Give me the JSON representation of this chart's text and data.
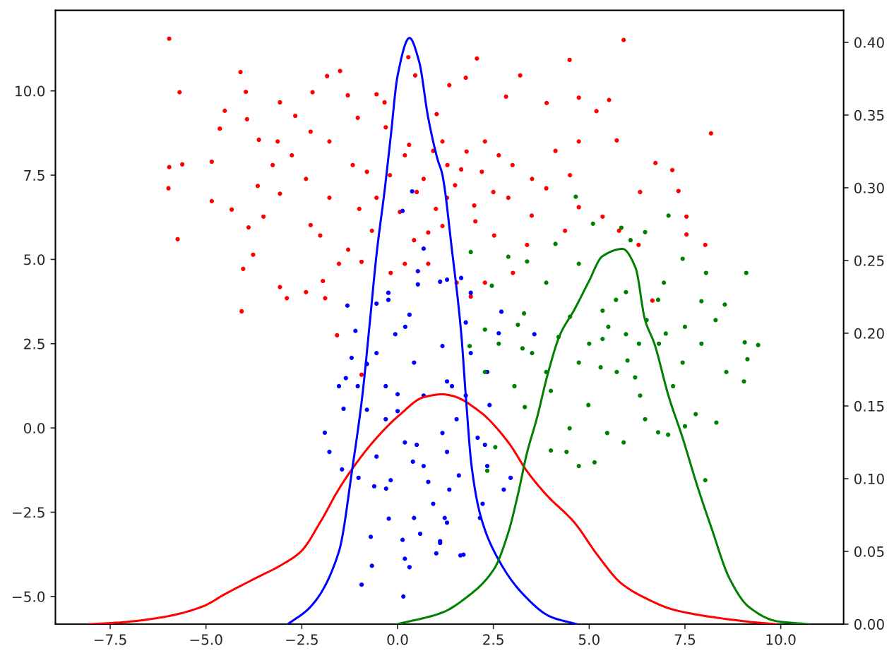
{
  "chart_data": {
    "type": "scatter",
    "xlim": [
      -8.93,
      11.64
    ],
    "ylim": [
      -5.82,
      12.39
    ],
    "y2lim": [
      0,
      0.422
    ],
    "xticks": [
      {
        "value": -7.5,
        "label": "−7.5"
      },
      {
        "value": -5.0,
        "label": "−5.0"
      },
      {
        "value": -2.5,
        "label": "−2.5"
      },
      {
        "value": 0,
        "label": "0.0"
      },
      {
        "value": 2.5,
        "label": "2.5"
      },
      {
        "value": 5.0,
        "label": "5.0"
      },
      {
        "value": 7.5,
        "label": "7.5"
      },
      {
        "value": 10.0,
        "label": "10.0"
      }
    ],
    "yticks": [
      {
        "value": -5.0,
        "label": "−5.0"
      },
      {
        "value": -2.5,
        "label": "−2.5"
      },
      {
        "value": 0,
        "label": "0.0"
      },
      {
        "value": 2.5,
        "label": "2.5"
      },
      {
        "value": 5.0,
        "label": "5.0"
      },
      {
        "value": 7.5,
        "label": "7.5"
      },
      {
        "value": 10.0,
        "label": "10.0"
      }
    ],
    "y2ticks": [
      {
        "value": 0,
        "label": "0.00"
      },
      {
        "value": 0.05,
        "label": "0.05"
      },
      {
        "value": 0.1,
        "label": "0.10"
      },
      {
        "value": 0.15,
        "label": "0.15"
      },
      {
        "value": 0.2,
        "label": "0.20"
      },
      {
        "value": 0.25,
        "label": "0.25"
      },
      {
        "value": 0.3,
        "label": "0.30"
      },
      {
        "value": 0.35,
        "label": "0.35"
      },
      {
        "value": 0.4,
        "label": "0.40"
      }
    ],
    "series": [
      {
        "color": "#ff0000",
        "marker": "circle",
        "x": [
          -5.96,
          -5.69,
          -5.62,
          -5.96,
          -5.98,
          -5.74,
          -4.85,
          -4.85,
          -4.64,
          -4.51,
          -4.1,
          -3.96,
          -3.93,
          -4.07,
          -4.03,
          -4.33,
          -3.77,
          -3.89,
          -3.65,
          -3.62,
          -3.07,
          -3.07,
          -3.07,
          -2.89,
          -2.67,
          -2.39,
          -2.27,
          -2.22,
          -1.89,
          -1.95,
          -1.84,
          -1.5,
          -1.58,
          -1.3,
          -0.94,
          -0.94,
          -0.34,
          0.28,
          0.46,
          1.02,
          1.35,
          2.07,
          3.2,
          4.49,
          5.9,
          8.18,
          8.03,
          7.54,
          7.54,
          7.33,
          7.17,
          6.73,
          6.29,
          6.33,
          6.65,
          5.78,
          5.52,
          5.19,
          4.73,
          3.89,
          2.83,
          1.78,
          5.72,
          4.73,
          4.12,
          3.51,
          2.64,
          2.28,
          1.66,
          2.89,
          3.88,
          4.73,
          5.35,
          2.03,
          2.52,
          3.38,
          4.37,
          2.28,
          3.01,
          1.91,
          1.54,
          1.17,
          1.29,
          1.17,
          -1.78,
          -1.17,
          -0.55,
          0.06,
          0.68,
          0.93,
          0.19,
          -0.31,
          -1.04,
          -1.78,
          -2.39,
          -2.76,
          -3.26,
          -3.5,
          -2.02,
          -1.29,
          -0.67,
          -0.18,
          0.43,
          0.8,
          0.19,
          -1.53,
          -0.55,
          -2.27,
          -3.13,
          0.5,
          1.5,
          2.5,
          1.0,
          2.0,
          -0.2,
          1.8,
          3.0,
          0.8,
          3.5,
          2.2,
          -1.0,
          1.3,
          4.5,
          0.3,
          -0.8
        ],
        "values": [
          11.55,
          9.96,
          7.82,
          7.74,
          7.11,
          5.6,
          7.9,
          6.73,
          8.88,
          9.41,
          10.56,
          9.97,
          9.16,
          3.46,
          4.72,
          6.48,
          5.14,
          5.95,
          7.18,
          8.55,
          6.95,
          9.66,
          4.18,
          3.85,
          9.26,
          4.03,
          6.02,
          9.96,
          3.85,
          4.36,
          10.44,
          10.59,
          2.75,
          9.87,
          4.93,
          1.58,
          9.66,
          11.0,
          10.46,
          9.31,
          10.17,
          10.96,
          10.46,
          10.92,
          11.51,
          8.74,
          5.43,
          6.27,
          5.74,
          7.03,
          7.65,
          7.86,
          5.43,
          7.0,
          3.78,
          5.85,
          9.73,
          9.4,
          9.8,
          9.64,
          9.83,
          10.39,
          8.53,
          8.5,
          8.22,
          7.39,
          8.09,
          8.5,
          7.67,
          6.83,
          7.11,
          6.55,
          6.27,
          6.13,
          5.71,
          5.43,
          5.85,
          4.31,
          4.6,
          3.9,
          4.31,
          5.99,
          6.83,
          8.5,
          8.5,
          7.8,
          6.83,
          6.41,
          7.39,
          8.22,
          8.09,
          8.92,
          9.2,
          6.83,
          7.39,
          8.09,
          7.8,
          6.27,
          5.71,
          5.29,
          5.85,
          4.6,
          5.57,
          4.87,
          4.87,
          4.87,
          9.9,
          8.79,
          8.5,
          7.0,
          7.2,
          7.0,
          6.5,
          6.6,
          7.5,
          8.2,
          7.8,
          5.8,
          6.3,
          7.6,
          6.5,
          7.8,
          7.5,
          8.4,
          7.6
        ]
      },
      {
        "color": "#0000ff",
        "marker": "circle",
        "x": [
          0.38,
          0.13,
          0.68,
          0.53,
          0.53,
          -1.31,
          -1.1,
          -0.24,
          -0.24,
          1.11,
          1.29,
          -0.55,
          0.31,
          1.66,
          1.91,
          1.78,
          2.71,
          3.57,
          2.64,
          -1.9,
          -1.78,
          -1.53,
          -1.2,
          -1.35,
          -1.41,
          -1.45,
          -1.04,
          -1.02,
          -0.94,
          -0.67,
          -0.7,
          -0.61,
          -0.23,
          0.15,
          0.19,
          0.31,
          0.13,
          0.59,
          1.11,
          1.01,
          0.93,
          0.43,
          1.29,
          -0.55,
          -0.31,
          -0.55,
          -0.06,
          0.43,
          0.68,
          0.19,
          0.68,
          1.17,
          1.29,
          -0.18,
          -0.8,
          -0.31,
          1.17,
          1.42,
          1.54,
          1.29,
          1.6,
          1.35,
          1.23,
          1.11,
          1.64,
          1.72,
          2.15,
          2.22,
          2.77,
          2.95,
          2.34,
          2.28,
          2.34,
          2.4,
          2.09,
          1.78,
          1.91,
          0.0,
          0.5,
          -0.3,
          0.8,
          -0.8,
          0.2,
          0.0,
          0.4
        ],
        "values": [
          7.02,
          6.44,
          5.32,
          4.65,
          4.26,
          3.63,
          2.88,
          4.01,
          3.8,
          4.34,
          4.4,
          3.69,
          3.36,
          4.45,
          4.01,
          3.13,
          3.45,
          2.78,
          2.81,
          -0.14,
          -0.71,
          1.24,
          2.08,
          1.48,
          0.57,
          -1.23,
          1.24,
          -1.48,
          -4.65,
          -4.09,
          -3.23,
          -1.73,
          -2.69,
          -5.0,
          -3.88,
          -4.13,
          -3.32,
          -3.14,
          -3.41,
          -3.72,
          -2.25,
          -2.67,
          -2.81,
          -0.85,
          0.26,
          2.22,
          2.78,
          1.94,
          0.96,
          -0.43,
          -1.13,
          -0.15,
          1.38,
          -1.55,
          0.54,
          1.24,
          2.43,
          1.24,
          0.26,
          -0.71,
          -1.41,
          -1.83,
          -2.67,
          -3.36,
          -3.78,
          -3.76,
          -2.67,
          -2.25,
          -1.83,
          -1.48,
          -1.13,
          -0.5,
          1.66,
          0.68,
          -0.29,
          0.96,
          2.22,
          1.0,
          -0.5,
          -1.8,
          -1.6,
          1.9,
          3.0,
          0.5,
          -1.0
        ]
      },
      {
        "color": "#008000",
        "marker": "circle",
        "x": [
          4.65,
          7.07,
          5.84,
          5.1,
          6.46,
          6.08,
          9.1,
          8.54,
          8.05,
          7.44,
          4.12,
          2.89,
          1.91,
          3.38,
          2.46,
          2.28,
          3.14,
          3.88,
          4.73,
          6.95,
          7.93,
          8.3,
          5.96,
          5.35,
          9.41,
          9.06,
          9.13,
          8.58,
          9.04,
          8.32,
          8.03,
          7.78,
          7.5,
          7.06,
          6.8,
          5.9,
          5.14,
          4.73,
          4.41,
          4.0,
          3.32,
          3.05,
          2.64,
          2.28,
          2.34,
          2.55,
          1.88,
          3.26,
          4.0,
          4.98,
          5.72,
          6.33,
          7.19,
          7.44,
          7.93,
          6.82,
          5.35,
          4.73,
          5.96,
          4.49,
          5.47,
          6.46,
          3.88,
          3.51,
          5.5,
          6.5,
          6.0,
          5.0,
          7.0,
          6.2,
          4.5,
          7.5,
          6.8,
          5.7,
          4.2,
          3.3,
          6.3,
          5.3
        ],
        "values": [
          6.86,
          6.3,
          5.94,
          6.06,
          5.81,
          5.57,
          4.6,
          3.66,
          4.6,
          5.02,
          5.46,
          5.08,
          5.22,
          4.94,
          4.22,
          2.92,
          3.06,
          4.31,
          4.87,
          4.31,
          3.76,
          3.2,
          4.03,
          3.48,
          2.46,
          2.54,
          2.04,
          1.66,
          1.38,
          0.16,
          -1.55,
          0.41,
          0.05,
          -0.2,
          -0.13,
          -0.43,
          -1.02,
          -1.13,
          -0.71,
          -0.67,
          0.62,
          1.24,
          2.5,
          1.66,
          -1.27,
          -0.57,
          2.43,
          2.36,
          1.1,
          0.68,
          1.66,
          0.96,
          1.24,
          1.94,
          2.5,
          2.5,
          2.64,
          1.94,
          2.78,
          -0.01,
          -0.15,
          0.26,
          1.66,
          2.22,
          3.0,
          3.2,
          2.0,
          2.5,
          2.8,
          1.5,
          3.3,
          3.0,
          3.8,
          3.8,
          2.7,
          3.4,
          2.5,
          1.8
        ]
      },
      {
        "type": "line",
        "axis": "y2",
        "color": "#ff0000",
        "marker": "none",
        "line_style": "solid",
        "x": [
          -8.05,
          -7.31,
          -6.08,
          -5.1,
          -4.48,
          -3.75,
          -3.01,
          -2.52,
          -2.02,
          -1.53,
          -1.04,
          -0.55,
          0.06,
          0.68,
          1.17,
          1.42,
          2.15,
          2.89,
          3.38,
          3.88,
          4.61,
          5.23,
          5.84,
          6.46,
          7.19,
          8.18,
          9.41,
          9.9
        ],
        "values": [
          0,
          0.001,
          0.005,
          0.012,
          0.021,
          0.031,
          0.041,
          0.05,
          0.07,
          0.093,
          0.112,
          0.128,
          0.144,
          0.156,
          0.158,
          0.157,
          0.146,
          0.125,
          0.105,
          0.089,
          0.07,
          0.047,
          0.028,
          0.018,
          0.01,
          0.005,
          0.001,
          0
        ]
      },
      {
        "type": "line",
        "axis": "y2",
        "color": "#0000ff",
        "marker": "none",
        "line_style": "solid",
        "x": [
          -2.86,
          -2.27,
          -1.53,
          -1.17,
          -0.92,
          -0.73,
          -0.55,
          -0.33,
          -0.18,
          0.0,
          0.31,
          0.56,
          0.8,
          1.05,
          1.16,
          1.42,
          1.66,
          1.78,
          1.93,
          2.15,
          2.52,
          3.26,
          4.0,
          4.67
        ],
        "values": [
          0,
          0.012,
          0.05,
          0.109,
          0.157,
          0.206,
          0.254,
          0.3,
          0.335,
          0.377,
          0.403,
          0.387,
          0.348,
          0.319,
          0.31,
          0.257,
          0.2,
          0.157,
          0.109,
          0.076,
          0.05,
          0.021,
          0.005,
          0
        ]
      },
      {
        "type": "line",
        "axis": "y2",
        "color": "#008000",
        "marker": "none",
        "line_style": "solid",
        "x": [
          0.0,
          1.17,
          1.78,
          2.52,
          2.89,
          3.14,
          3.38,
          3.63,
          3.93,
          4.24,
          4.61,
          4.98,
          5.35,
          5.87,
          6.21,
          6.46,
          6.7,
          7.07,
          7.44,
          7.81,
          8.18,
          8.67,
          9.16,
          9.9,
          10.7
        ],
        "values": [
          0,
          0.008,
          0.018,
          0.038,
          0.063,
          0.089,
          0.118,
          0.141,
          0.173,
          0.199,
          0.216,
          0.235,
          0.253,
          0.258,
          0.245,
          0.209,
          0.193,
          0.157,
          0.128,
          0.096,
          0.067,
          0.031,
          0.012,
          0.002,
          0
        ]
      }
    ]
  }
}
